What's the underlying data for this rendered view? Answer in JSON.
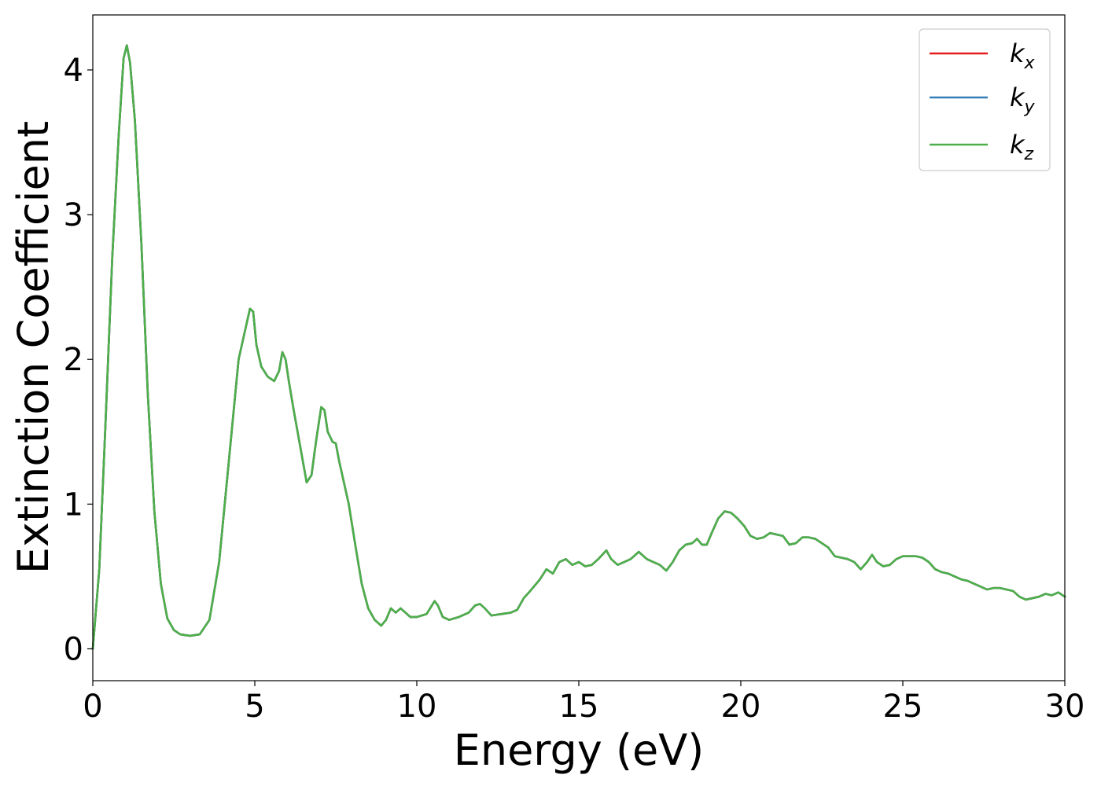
{
  "chart_data": {
    "type": "line",
    "title": "",
    "xlabel": "Energy (eV)",
    "ylabel": "Extinction Coefficient",
    "xlim": [
      0,
      30
    ],
    "ylim": [
      -0.22,
      4.38
    ],
    "xticks": [
      0,
      5,
      10,
      15,
      20,
      25,
      30
    ],
    "xtick_labels": [
      "0",
      "5",
      "10",
      "15",
      "20",
      "25",
      "30"
    ],
    "yticks": [
      0,
      1,
      2,
      3,
      4
    ],
    "ytick_labels": [
      "0",
      "1",
      "2",
      "3",
      "4"
    ],
    "grid": false,
    "legend_position": "top-right",
    "series": [
      {
        "name": "k_x",
        "label_base": "k",
        "label_sub": "x",
        "color": "#e41a1c",
        "x": [
          0,
          0.2,
          0.4,
          0.6,
          0.8,
          0.95,
          1.05,
          1.15,
          1.3,
          1.5,
          1.7,
          1.9,
          2.1,
          2.3,
          2.5,
          2.7,
          3.0,
          3.3,
          3.6,
          3.9,
          4.2,
          4.5,
          4.7,
          4.85,
          4.95,
          5.05,
          5.2,
          5.4,
          5.6,
          5.75,
          5.85,
          5.95,
          6.05,
          6.2,
          6.4,
          6.6,
          6.75,
          6.9,
          7.05,
          7.15,
          7.25,
          7.4,
          7.5,
          7.6,
          7.75,
          7.9,
          8.1,
          8.3,
          8.5,
          8.7,
          8.9,
          9.05,
          9.2,
          9.35,
          9.5,
          9.65,
          9.8,
          10.0,
          10.3,
          10.55,
          10.65,
          10.8,
          11.0,
          11.3,
          11.6,
          11.8,
          11.95,
          12.1,
          12.3,
          12.6,
          12.9,
          13.1,
          13.3,
          13.5,
          13.8,
          14.0,
          14.2,
          14.4,
          14.6,
          14.8,
          15.0,
          15.2,
          15.4,
          15.6,
          15.85,
          16.0,
          16.2,
          16.4,
          16.6,
          16.85,
          17.1,
          17.3,
          17.5,
          17.7,
          17.9,
          18.1,
          18.3,
          18.5,
          18.65,
          18.8,
          18.95,
          19.1,
          19.3,
          19.5,
          19.7,
          19.9,
          20.1,
          20.3,
          20.5,
          20.7,
          20.9,
          21.1,
          21.3,
          21.5,
          21.7,
          21.9,
          22.1,
          22.3,
          22.5,
          22.7,
          22.9,
          23.1,
          23.3,
          23.5,
          23.7,
          23.9,
          24.05,
          24.2,
          24.4,
          24.6,
          24.8,
          25.0,
          25.2,
          25.4,
          25.6,
          25.8,
          26.0,
          26.2,
          26.4,
          26.6,
          26.8,
          27.0,
          27.2,
          27.4,
          27.6,
          27.8,
          28.0,
          28.2,
          28.4,
          28.6,
          28.8,
          29.0,
          29.2,
          29.4,
          29.6,
          29.8,
          30.0
        ],
        "y": [
          0.0,
          0.55,
          1.6,
          2.7,
          3.55,
          4.08,
          4.17,
          4.05,
          3.65,
          2.8,
          1.75,
          0.95,
          0.45,
          0.21,
          0.13,
          0.1,
          0.09,
          0.1,
          0.2,
          0.6,
          1.3,
          2.0,
          2.2,
          2.35,
          2.33,
          2.1,
          1.95,
          1.88,
          1.85,
          1.92,
          2.05,
          2.0,
          1.85,
          1.65,
          1.4,
          1.15,
          1.2,
          1.45,
          1.67,
          1.65,
          1.5,
          1.43,
          1.42,
          1.3,
          1.15,
          1.0,
          0.72,
          0.45,
          0.28,
          0.2,
          0.16,
          0.2,
          0.28,
          0.25,
          0.28,
          0.25,
          0.22,
          0.22,
          0.24,
          0.33,
          0.3,
          0.22,
          0.2,
          0.22,
          0.25,
          0.3,
          0.31,
          0.28,
          0.23,
          0.24,
          0.25,
          0.27,
          0.35,
          0.4,
          0.48,
          0.55,
          0.52,
          0.6,
          0.62,
          0.58,
          0.6,
          0.57,
          0.58,
          0.62,
          0.68,
          0.62,
          0.58,
          0.6,
          0.62,
          0.67,
          0.62,
          0.6,
          0.58,
          0.54,
          0.6,
          0.68,
          0.72,
          0.73,
          0.76,
          0.72,
          0.72,
          0.8,
          0.9,
          0.95,
          0.94,
          0.9,
          0.85,
          0.78,
          0.76,
          0.77,
          0.8,
          0.79,
          0.78,
          0.72,
          0.73,
          0.77,
          0.77,
          0.76,
          0.73,
          0.7,
          0.64,
          0.63,
          0.62,
          0.6,
          0.55,
          0.6,
          0.65,
          0.6,
          0.57,
          0.58,
          0.62,
          0.64,
          0.64,
          0.64,
          0.63,
          0.6,
          0.55,
          0.53,
          0.52,
          0.5,
          0.48,
          0.47,
          0.45,
          0.43,
          0.41,
          0.42,
          0.42,
          0.41,
          0.4,
          0.36,
          0.34,
          0.35,
          0.36,
          0.38,
          0.37,
          0.39,
          0.36
        ]
      },
      {
        "name": "k_y",
        "label_base": "k",
        "label_sub": "y",
        "color": "#377eb8",
        "x": [
          0,
          0.2,
          0.4,
          0.6,
          0.8,
          0.95,
          1.05,
          1.15,
          1.3,
          1.5,
          1.7,
          1.9,
          2.1,
          2.3,
          2.5,
          2.7,
          3.0,
          3.3,
          3.6,
          3.9,
          4.2,
          4.5,
          4.7,
          4.85,
          4.95,
          5.05,
          5.2,
          5.4,
          5.6,
          5.75,
          5.85,
          5.95,
          6.05,
          6.2,
          6.4,
          6.6,
          6.75,
          6.9,
          7.05,
          7.15,
          7.25,
          7.4,
          7.5,
          7.6,
          7.75,
          7.9,
          8.1,
          8.3,
          8.5,
          8.7,
          8.9,
          9.05,
          9.2,
          9.35,
          9.5,
          9.65,
          9.8,
          10.0,
          10.3,
          10.55,
          10.65,
          10.8,
          11.0,
          11.3,
          11.6,
          11.8,
          11.95,
          12.1,
          12.3,
          12.6,
          12.9,
          13.1,
          13.3,
          13.5,
          13.8,
          14.0,
          14.2,
          14.4,
          14.6,
          14.8,
          15.0,
          15.2,
          15.4,
          15.6,
          15.85,
          16.0,
          16.2,
          16.4,
          16.6,
          16.85,
          17.1,
          17.3,
          17.5,
          17.7,
          17.9,
          18.1,
          18.3,
          18.5,
          18.65,
          18.8,
          18.95,
          19.1,
          19.3,
          19.5,
          19.7,
          19.9,
          20.1,
          20.3,
          20.5,
          20.7,
          20.9,
          21.1,
          21.3,
          21.5,
          21.7,
          21.9,
          22.1,
          22.3,
          22.5,
          22.7,
          22.9,
          23.1,
          23.3,
          23.5,
          23.7,
          23.9,
          24.05,
          24.2,
          24.4,
          24.6,
          24.8,
          25.0,
          25.2,
          25.4,
          25.6,
          25.8,
          26.0,
          26.2,
          26.4,
          26.6,
          26.8,
          27.0,
          27.2,
          27.4,
          27.6,
          27.8,
          28.0,
          28.2,
          28.4,
          28.6,
          28.8,
          29.0,
          29.2,
          29.4,
          29.6,
          29.8,
          30.0
        ],
        "y": [
          0.0,
          0.55,
          1.6,
          2.7,
          3.55,
          4.08,
          4.17,
          4.05,
          3.65,
          2.8,
          1.75,
          0.95,
          0.45,
          0.21,
          0.13,
          0.1,
          0.09,
          0.1,
          0.2,
          0.6,
          1.3,
          2.0,
          2.2,
          2.35,
          2.33,
          2.1,
          1.95,
          1.88,
          1.85,
          1.92,
          2.05,
          2.0,
          1.85,
          1.65,
          1.4,
          1.15,
          1.2,
          1.45,
          1.67,
          1.65,
          1.5,
          1.43,
          1.42,
          1.3,
          1.15,
          1.0,
          0.72,
          0.45,
          0.28,
          0.2,
          0.16,
          0.2,
          0.28,
          0.25,
          0.28,
          0.25,
          0.22,
          0.22,
          0.24,
          0.33,
          0.3,
          0.22,
          0.2,
          0.22,
          0.25,
          0.3,
          0.31,
          0.28,
          0.23,
          0.24,
          0.25,
          0.27,
          0.35,
          0.4,
          0.48,
          0.55,
          0.52,
          0.6,
          0.62,
          0.58,
          0.6,
          0.57,
          0.58,
          0.62,
          0.68,
          0.62,
          0.58,
          0.6,
          0.62,
          0.67,
          0.62,
          0.6,
          0.58,
          0.54,
          0.6,
          0.68,
          0.72,
          0.73,
          0.76,
          0.72,
          0.72,
          0.8,
          0.9,
          0.95,
          0.94,
          0.9,
          0.85,
          0.78,
          0.76,
          0.77,
          0.8,
          0.79,
          0.78,
          0.72,
          0.73,
          0.77,
          0.77,
          0.76,
          0.73,
          0.7,
          0.64,
          0.63,
          0.62,
          0.6,
          0.55,
          0.6,
          0.65,
          0.6,
          0.57,
          0.58,
          0.62,
          0.64,
          0.64,
          0.64,
          0.63,
          0.6,
          0.55,
          0.53,
          0.52,
          0.5,
          0.48,
          0.47,
          0.45,
          0.43,
          0.41,
          0.42,
          0.42,
          0.41,
          0.4,
          0.36,
          0.34,
          0.35,
          0.36,
          0.38,
          0.37,
          0.39,
          0.36
        ]
      },
      {
        "name": "k_z",
        "label_base": "k",
        "label_sub": "z",
        "color": "#4daf4a",
        "x": [
          0,
          0.2,
          0.4,
          0.6,
          0.8,
          0.95,
          1.05,
          1.15,
          1.3,
          1.5,
          1.7,
          1.9,
          2.1,
          2.3,
          2.5,
          2.7,
          3.0,
          3.3,
          3.6,
          3.9,
          4.2,
          4.5,
          4.7,
          4.85,
          4.95,
          5.05,
          5.2,
          5.4,
          5.6,
          5.75,
          5.85,
          5.95,
          6.05,
          6.2,
          6.4,
          6.6,
          6.75,
          6.9,
          7.05,
          7.15,
          7.25,
          7.4,
          7.5,
          7.6,
          7.75,
          7.9,
          8.1,
          8.3,
          8.5,
          8.7,
          8.9,
          9.05,
          9.2,
          9.35,
          9.5,
          9.65,
          9.8,
          10.0,
          10.3,
          10.55,
          10.65,
          10.8,
          11.0,
          11.3,
          11.6,
          11.8,
          11.95,
          12.1,
          12.3,
          12.6,
          12.9,
          13.1,
          13.3,
          13.5,
          13.8,
          14.0,
          14.2,
          14.4,
          14.6,
          14.8,
          15.0,
          15.2,
          15.4,
          15.6,
          15.85,
          16.0,
          16.2,
          16.4,
          16.6,
          16.85,
          17.1,
          17.3,
          17.5,
          17.7,
          17.9,
          18.1,
          18.3,
          18.5,
          18.65,
          18.8,
          18.95,
          19.1,
          19.3,
          19.5,
          19.7,
          19.9,
          20.1,
          20.3,
          20.5,
          20.7,
          20.9,
          21.1,
          21.3,
          21.5,
          21.7,
          21.9,
          22.1,
          22.3,
          22.5,
          22.7,
          22.9,
          23.1,
          23.3,
          23.5,
          23.7,
          23.9,
          24.05,
          24.2,
          24.4,
          24.6,
          24.8,
          25.0,
          25.2,
          25.4,
          25.6,
          25.8,
          26.0,
          26.2,
          26.4,
          26.6,
          26.8,
          27.0,
          27.2,
          27.4,
          27.6,
          27.8,
          28.0,
          28.2,
          28.4,
          28.6,
          28.8,
          29.0,
          29.2,
          29.4,
          29.6,
          29.8,
          30.0
        ],
        "y": [
          0.0,
          0.55,
          1.6,
          2.7,
          3.55,
          4.08,
          4.17,
          4.05,
          3.65,
          2.8,
          1.75,
          0.95,
          0.45,
          0.21,
          0.13,
          0.1,
          0.09,
          0.1,
          0.2,
          0.6,
          1.3,
          2.0,
          2.2,
          2.35,
          2.33,
          2.1,
          1.95,
          1.88,
          1.85,
          1.92,
          2.05,
          2.0,
          1.85,
          1.65,
          1.4,
          1.15,
          1.2,
          1.45,
          1.67,
          1.65,
          1.5,
          1.43,
          1.42,
          1.3,
          1.15,
          1.0,
          0.72,
          0.45,
          0.28,
          0.2,
          0.16,
          0.2,
          0.28,
          0.25,
          0.28,
          0.25,
          0.22,
          0.22,
          0.24,
          0.33,
          0.3,
          0.22,
          0.2,
          0.22,
          0.25,
          0.3,
          0.31,
          0.28,
          0.23,
          0.24,
          0.25,
          0.27,
          0.35,
          0.4,
          0.48,
          0.55,
          0.52,
          0.6,
          0.62,
          0.58,
          0.6,
          0.57,
          0.58,
          0.62,
          0.68,
          0.62,
          0.58,
          0.6,
          0.62,
          0.67,
          0.62,
          0.6,
          0.58,
          0.54,
          0.6,
          0.68,
          0.72,
          0.73,
          0.76,
          0.72,
          0.72,
          0.8,
          0.9,
          0.95,
          0.94,
          0.9,
          0.85,
          0.78,
          0.76,
          0.77,
          0.8,
          0.79,
          0.78,
          0.72,
          0.73,
          0.77,
          0.77,
          0.76,
          0.73,
          0.7,
          0.64,
          0.63,
          0.62,
          0.6,
          0.55,
          0.6,
          0.65,
          0.6,
          0.57,
          0.58,
          0.62,
          0.64,
          0.64,
          0.64,
          0.63,
          0.6,
          0.55,
          0.53,
          0.52,
          0.5,
          0.48,
          0.47,
          0.45,
          0.43,
          0.41,
          0.42,
          0.42,
          0.41,
          0.4,
          0.36,
          0.34,
          0.35,
          0.36,
          0.38,
          0.37,
          0.39,
          0.36
        ]
      }
    ]
  }
}
